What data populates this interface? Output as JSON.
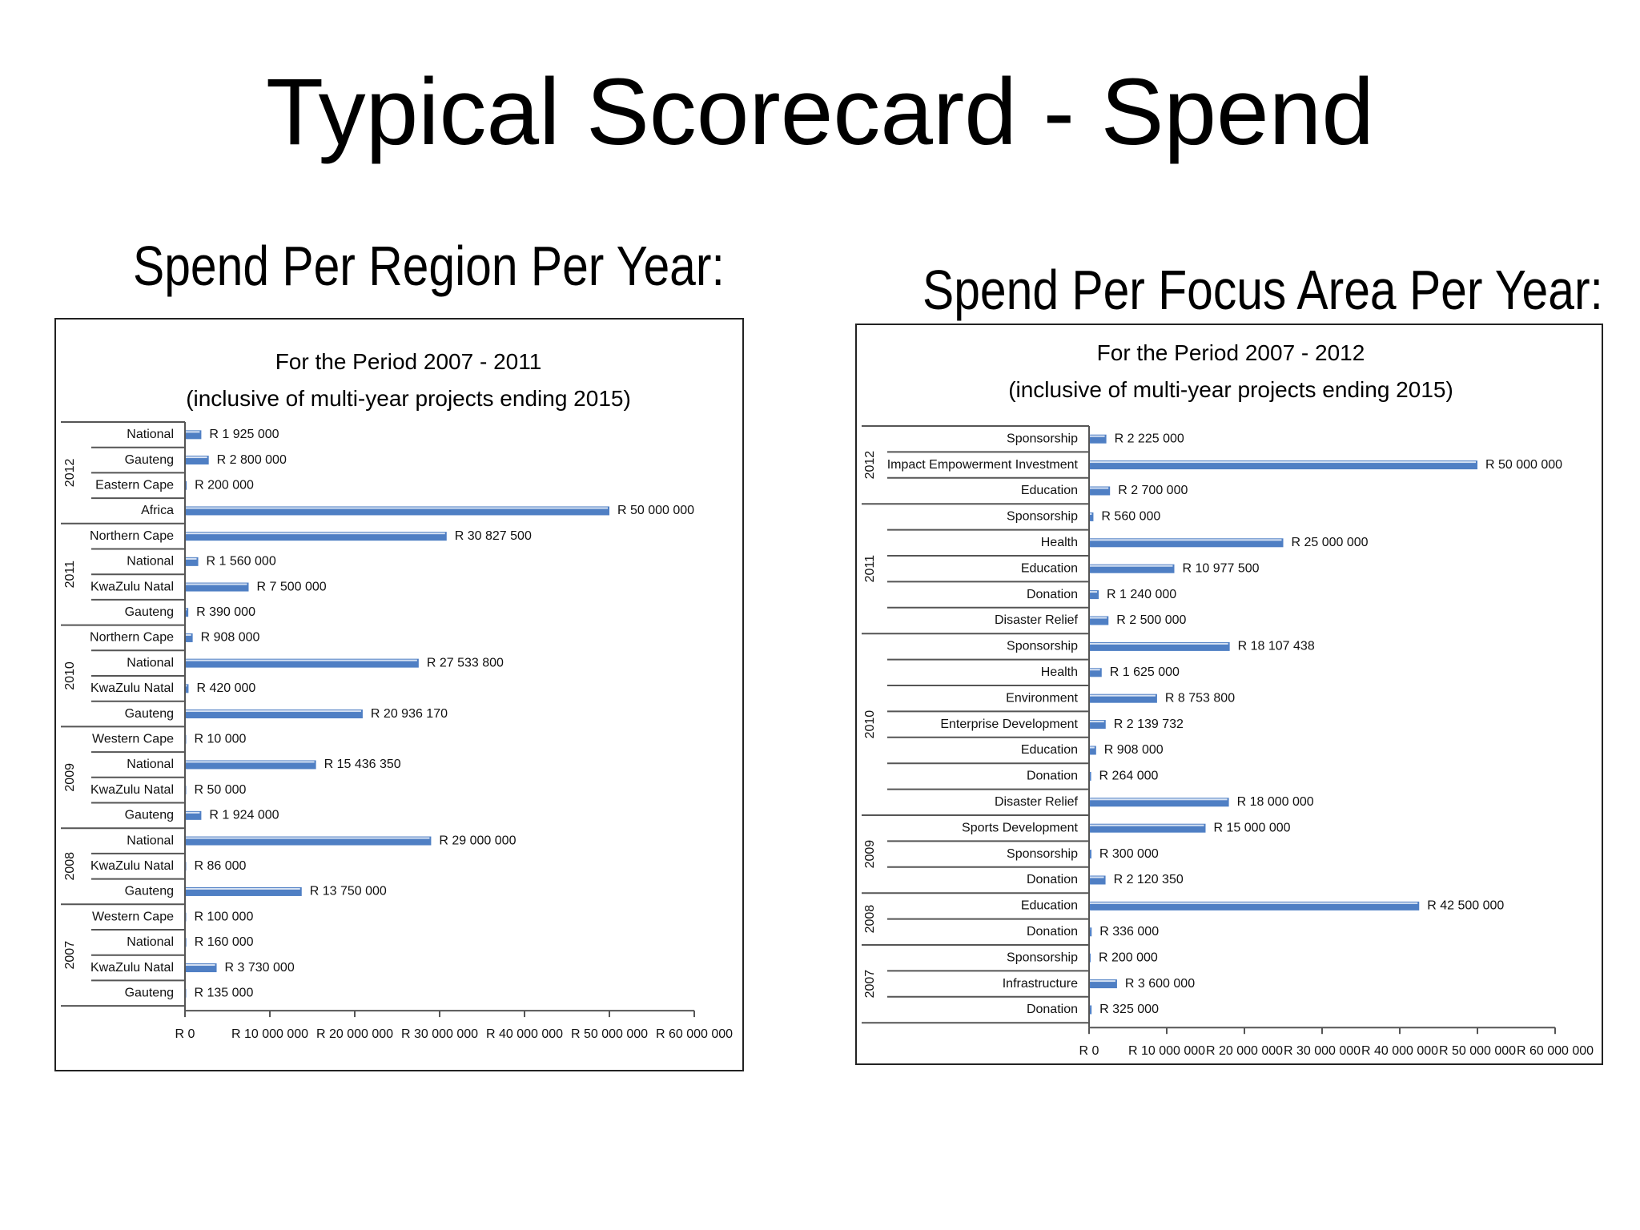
{
  "slide": {
    "title": "Typical Scorecard - Spend",
    "left_heading": "Spend Per Region Per Year:",
    "right_heading": "Spend Per Focus Area Per Year:"
  },
  "colors": {
    "bar": "#4f7fc4",
    "bar_highlight": "#d6e2f3",
    "axis": "#555555"
  },
  "chart_data": [
    {
      "type": "bar",
      "orientation": "horizontal",
      "title": "For the Period 2007 - 2011",
      "subtitle": "(inclusive of multi-year projects ending 2015)",
      "xlim": [
        0,
        60000000
      ],
      "x_ticks": [
        "R 0",
        "R 10 000 000",
        "R 20 000 000",
        "R 30 000 000",
        "R 40 000 000",
        "R 50 000 000",
        "R 60 000 000"
      ],
      "groups": [
        {
          "year": "2012",
          "items": [
            {
              "label": "National",
              "value": 1925000,
              "value_label": "R 1 925 000"
            },
            {
              "label": "Gauteng",
              "value": 2800000,
              "value_label": "R 2 800 000"
            },
            {
              "label": "Eastern Cape",
              "value": 200000,
              "value_label": "R 200 000"
            },
            {
              "label": "Africa",
              "value": 50000000,
              "value_label": "R 50 000 000"
            }
          ]
        },
        {
          "year": "2011",
          "items": [
            {
              "label": "Northern Cape",
              "value": 30827500,
              "value_label": "R 30 827 500"
            },
            {
              "label": "National",
              "value": 1560000,
              "value_label": "R 1 560 000"
            },
            {
              "label": "KwaZulu Natal",
              "value": 7500000,
              "value_label": "R 7 500 000"
            },
            {
              "label": "Gauteng",
              "value": 390000,
              "value_label": "R 390 000"
            }
          ]
        },
        {
          "year": "2010",
          "items": [
            {
              "label": "Northern Cape",
              "value": 908000,
              "value_label": "R 908 000"
            },
            {
              "label": "National",
              "value": 27533800,
              "value_label": "R 27 533 800"
            },
            {
              "label": "KwaZulu Natal",
              "value": 420000,
              "value_label": "R 420 000"
            },
            {
              "label": "Gauteng",
              "value": 20936170,
              "value_label": "R 20 936 170"
            }
          ]
        },
        {
          "year": "2009",
          "items": [
            {
              "label": "Western Cape",
              "value": 10000,
              "value_label": "R 10 000"
            },
            {
              "label": "National",
              "value": 15436350,
              "value_label": "R 15 436 350"
            },
            {
              "label": "KwaZulu Natal",
              "value": 50000,
              "value_label": "R 50 000"
            },
            {
              "label": "Gauteng",
              "value": 1924000,
              "value_label": "R 1 924 000"
            }
          ]
        },
        {
          "year": "2008",
          "items": [
            {
              "label": "National",
              "value": 29000000,
              "value_label": "R 29 000 000"
            },
            {
              "label": "KwaZulu Natal",
              "value": 86000,
              "value_label": "R 86 000"
            },
            {
              "label": "Gauteng",
              "value": 13750000,
              "value_label": "R 13 750 000"
            }
          ]
        },
        {
          "year": "2007",
          "items": [
            {
              "label": "Western Cape",
              "value": 100000,
              "value_label": "R 100 000"
            },
            {
              "label": "National",
              "value": 160000,
              "value_label": "R 160 000"
            },
            {
              "label": "KwaZulu Natal",
              "value": 3730000,
              "value_label": "R 3 730 000"
            },
            {
              "label": "Gauteng",
              "value": 135000,
              "value_label": "R 135 000"
            }
          ]
        }
      ]
    },
    {
      "type": "bar",
      "orientation": "horizontal",
      "title": "For the Period 2007 - 2012",
      "subtitle": "(inclusive of multi-year projects ending 2015)",
      "xlim": [
        0,
        60000000
      ],
      "x_ticks": [
        "R 0",
        "R 10 000 000",
        "R 20 000 000",
        "R 30 000 000",
        "R 40 000 000",
        "R 50 000 000",
        "R 60 000 000"
      ],
      "groups": [
        {
          "year": "2012",
          "items": [
            {
              "label": "Sponsorship",
              "value": 2225000,
              "value_label": "R 2 225 000"
            },
            {
              "label": "Impact Empowerment Investment",
              "value": 50000000,
              "value_label": "R 50 000 000"
            },
            {
              "label": "Education",
              "value": 2700000,
              "value_label": "R 2 700 000"
            }
          ]
        },
        {
          "year": "2011",
          "items": [
            {
              "label": "Sponsorship",
              "value": 560000,
              "value_label": "R 560 000"
            },
            {
              "label": "Health",
              "value": 25000000,
              "value_label": "R 25 000 000"
            },
            {
              "label": "Education",
              "value": 10977500,
              "value_label": "R 10 977 500"
            },
            {
              "label": "Donation",
              "value": 1240000,
              "value_label": "R 1 240 000"
            },
            {
              "label": "Disaster Relief",
              "value": 2500000,
              "value_label": "R 2 500 000"
            }
          ]
        },
        {
          "year": "2010",
          "items": [
            {
              "label": "Sponsorship",
              "value": 18107438,
              "value_label": "R 18 107 438"
            },
            {
              "label": "Health",
              "value": 1625000,
              "value_label": "R 1 625 000"
            },
            {
              "label": "Environment",
              "value": 8753800,
              "value_label": "R 8 753 800"
            },
            {
              "label": "Enterprise Development",
              "value": 2139732,
              "value_label": "R 2 139 732"
            },
            {
              "label": "Education",
              "value": 908000,
              "value_label": "R 908 000"
            },
            {
              "label": "Donation",
              "value": 264000,
              "value_label": "R 264 000"
            },
            {
              "label": "Disaster Relief",
              "value": 18000000,
              "value_label": "R 18 000 000"
            }
          ]
        },
        {
          "year": "2009",
          "items": [
            {
              "label": "Sports Development",
              "value": 15000000,
              "value_label": "R 15 000 000"
            },
            {
              "label": "Sponsorship",
              "value": 300000,
              "value_label": "R 300 000"
            },
            {
              "label": "Donation",
              "value": 2120350,
              "value_label": "R 2 120 350"
            }
          ]
        },
        {
          "year": "2008",
          "items": [
            {
              "label": "Education",
              "value": 42500000,
              "value_label": "R 42 500 000"
            },
            {
              "label": "Donation",
              "value": 336000,
              "value_label": "R 336 000"
            }
          ]
        },
        {
          "year": "2007",
          "items": [
            {
              "label": "Sponsorship",
              "value": 200000,
              "value_label": "R 200 000"
            },
            {
              "label": "Infrastructure",
              "value": 3600000,
              "value_label": "R 3 600 000"
            },
            {
              "label": "Donation",
              "value": 325000,
              "value_label": "R 325 000"
            }
          ]
        }
      ]
    }
  ]
}
